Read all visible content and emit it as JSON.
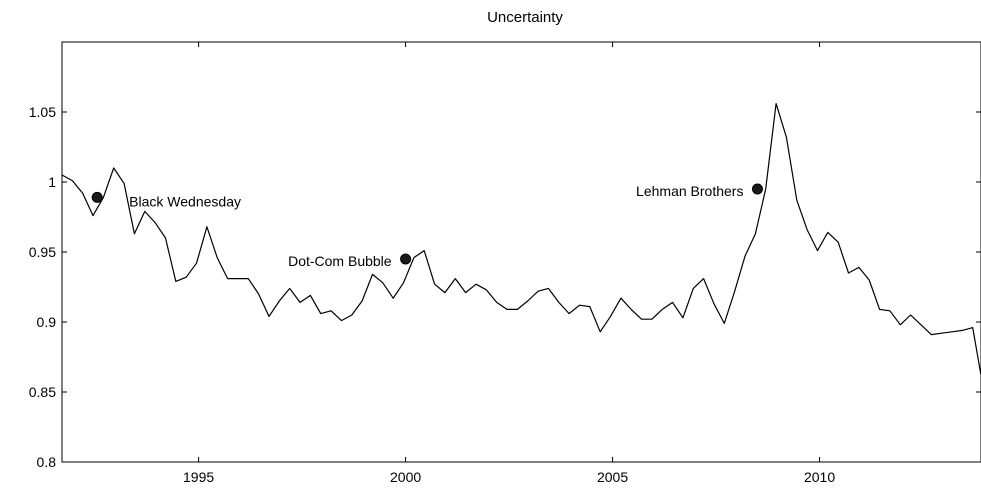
{
  "chart_data": {
    "type": "line",
    "title": "Uncertainty",
    "xlabel": "",
    "ylabel": "",
    "xlim": [
      1991.7,
      2013.9
    ],
    "ylim": [
      0.8,
      1.1
    ],
    "x_ticks": [
      1995,
      2000,
      2005,
      2010
    ],
    "x_tick_labels": [
      "1995",
      "2000",
      "2005",
      "2010"
    ],
    "y_ticks": [
      0.8,
      0.85,
      0.9,
      0.95,
      1.0,
      1.05
    ],
    "y_tick_labels": [
      "0.8",
      "0.85",
      "0.9",
      "0.95",
      "1",
      "1.05"
    ],
    "grid": false,
    "colors": {
      "line": "#000000",
      "marker": "#1a1a1a"
    },
    "series": [
      {
        "x": [
          1991.7,
          1991.95,
          1992.2,
          1992.45,
          1992.7,
          1992.95,
          1993.2,
          1993.45,
          1993.7,
          1993.95,
          1994.2,
          1994.45,
          1994.7,
          1994.95,
          1995.2,
          1995.45,
          1995.7,
          1995.95,
          1996.2,
          1996.45,
          1996.7,
          1996.95,
          1997.2,
          1997.45,
          1997.7,
          1997.95,
          1998.2,
          1998.45,
          1998.7,
          1998.95,
          1999.2,
          1999.45,
          1999.7,
          1999.95,
          2000.2,
          2000.45,
          2000.7,
          2000.95,
          2001.2,
          2001.45,
          2001.7,
          2001.95,
          2002.2,
          2002.45,
          2002.7,
          2002.95,
          2003.2,
          2003.45,
          2003.7,
          2003.95,
          2004.2,
          2004.45,
          2004.7,
          2004.95,
          2005.2,
          2005.45,
          2005.7,
          2005.95,
          2006.2,
          2006.45,
          2006.7,
          2006.95,
          2007.2,
          2007.45,
          2007.7,
          2007.95,
          2008.2,
          2008.45,
          2008.7,
          2008.95,
          2009.2,
          2009.45,
          2009.7,
          2009.95,
          2010.2,
          2010.45,
          2010.7,
          2010.95,
          2011.2,
          2011.45,
          2011.7,
          2011.95,
          2012.2,
          2012.45,
          2012.7,
          2012.95,
          2013.2,
          2013.45,
          2013.7,
          2013.9
        ],
        "y": [
          1.005,
          1.001,
          0.992,
          0.976,
          0.989,
          1.01,
          0.999,
          0.963,
          0.979,
          0.971,
          0.96,
          0.929,
          0.932,
          0.942,
          0.968,
          0.946,
          0.931,
          0.931,
          0.931,
          0.92,
          0.904,
          0.915,
          0.924,
          0.914,
          0.919,
          0.906,
          0.908,
          0.901,
          0.905,
          0.915,
          0.934,
          0.928,
          0.917,
          0.928,
          0.946,
          0.951,
          0.927,
          0.921,
          0.931,
          0.921,
          0.927,
          0.923,
          0.914,
          0.909,
          0.909,
          0.915,
          0.922,
          0.924,
          0.914,
          0.906,
          0.912,
          0.911,
          0.893,
          0.904,
          0.917,
          0.909,
          0.902,
          0.902,
          0.909,
          0.914,
          0.903,
          0.924,
          0.931,
          0.913,
          0.899,
          0.922,
          0.947,
          0.963,
          0.995,
          1.056,
          1.032,
          0.987,
          0.966,
          0.951,
          0.964,
          0.957,
          0.935,
          0.939,
          0.93,
          0.909,
          0.908,
          0.898,
          0.905,
          0.898,
          0.891,
          0.892,
          0.893,
          0.894,
          0.896,
          0.862
        ]
      }
    ],
    "annotations": [
      {
        "label": "Black Wednesday",
        "x": 1992.55,
        "y": 0.989,
        "label_side": "right"
      },
      {
        "label": "Dot-Com Bubble",
        "x": 2000.0,
        "y": 0.945,
        "label_side": "left"
      },
      {
        "label": "Lehman Brothers",
        "x": 2008.5,
        "y": 0.995,
        "label_side": "left"
      }
    ]
  }
}
